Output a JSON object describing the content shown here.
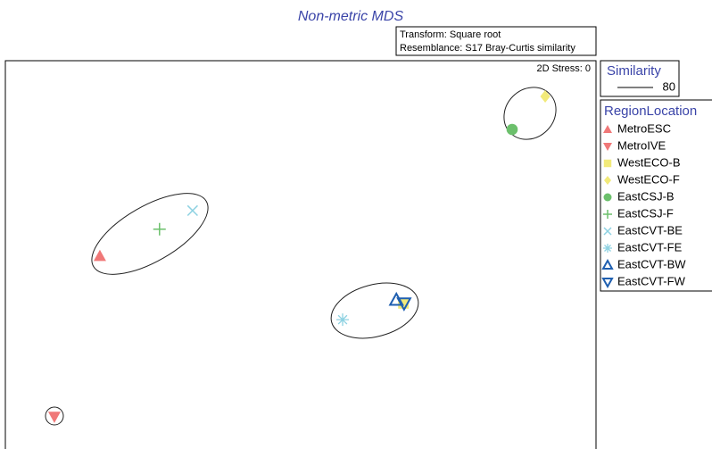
{
  "chart_data": {
    "type": "scatter",
    "title": "Non-metric MDS",
    "annotations": [
      "Transform: Square root",
      "Resemblance: S17 Bray-Curtis similarity",
      "2D Stress: 0"
    ],
    "similarity_title": "Similarity",
    "similarity_level": "80",
    "legend_title": "RegionLocation",
    "xlim": [
      0,
      100
    ],
    "ylim": [
      0,
      100
    ],
    "series": [
      {
        "name": "MetroESC",
        "color": "#f07878",
        "marker": "triangle",
        "x": [
          16.0
        ],
        "values": [
          49.7
        ]
      },
      {
        "name": "MetroIVE",
        "color": "#f07878",
        "marker": "triangle-down",
        "x": [
          8.3
        ],
        "values": [
          8.3
        ]
      },
      {
        "name": "WestECO-B",
        "color": "#f2ea7a",
        "marker": "square",
        "x": [
          67.4
        ],
        "values": [
          37.5
        ]
      },
      {
        "name": "WestECO-F",
        "color": "#f2ea7a",
        "marker": "diamond",
        "x": [
          91.4
        ],
        "values": [
          90.8
        ]
      },
      {
        "name": "EastCSJ-B",
        "color": "#6cc06c",
        "marker": "circle",
        "x": [
          85.8
        ],
        "values": [
          82.3
        ]
      },
      {
        "name": "EastCSJ-F",
        "color": "#6cc06c",
        "marker": "plus",
        "x": [
          26.1
        ],
        "values": [
          56.6
        ]
      },
      {
        "name": "EastCVT-BE",
        "color": "#8ed2e2",
        "marker": "cross",
        "x": [
          31.7
        ],
        "values": [
          61.4
        ]
      },
      {
        "name": "EastCVT-FE",
        "color": "#8ed2e2",
        "marker": "asterisk",
        "x": [
          57.1
        ],
        "values": [
          33.3
        ]
      },
      {
        "name": "EastCVT-BW",
        "color": "#1f5fb0",
        "marker": "triangle-open",
        "x": [
          66.2
        ],
        "values": [
          38.4
        ]
      },
      {
        "name": "EastCVT-FW",
        "color": "#1f5fb0",
        "marker": "triangle-down-open",
        "x": [
          67.5
        ],
        "values": [
          37.5
        ]
      }
    ]
  }
}
